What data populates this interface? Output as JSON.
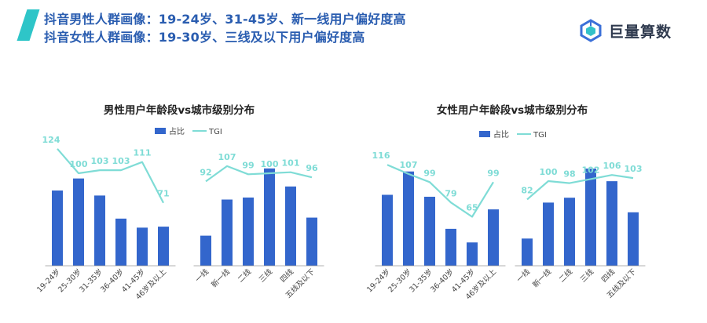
{
  "header": {
    "line1": "抖音男性人群画像：19-24岁、31-45岁、新一线用户偏好度高",
    "line2": "抖音女性人群画像：19-30岁、三线及以下用户偏好度高",
    "accent_color": "#2ec5c8",
    "headline_color": "#2a5db0"
  },
  "brand": {
    "name": "巨量算数",
    "icon": "cube-logo-icon"
  },
  "colors": {
    "bar": "#3366cc",
    "line": "#7fdcd6",
    "axis": "#999999"
  },
  "chart_data": [
    {
      "type": "bar",
      "title": "男性用户年龄段vs城市级别分布",
      "legend": {
        "bar": "占比",
        "line": "TGI",
        "position": "top"
      },
      "groups": [
        {
          "categories": [
            "19-24岁",
            "25-30岁",
            "31-35岁",
            "36-40岁",
            "41-45岁",
            "46岁及以上"
          ],
          "bar_values": [
            0.75,
            0.87,
            0.7,
            0.47,
            0.38,
            0.39
          ],
          "tgi_values": [
            124,
            100,
            103,
            103,
            111,
            71
          ]
        },
        {
          "categories": [
            "一线",
            "新一线",
            "二线",
            "三线",
            "四线",
            "五线及以下"
          ],
          "bar_values": [
            0.3,
            0.66,
            0.68,
            0.97,
            0.79,
            0.48
          ],
          "tgi_values": [
            92,
            107,
            99,
            100,
            101,
            96
          ]
        }
      ]
    },
    {
      "type": "bar",
      "title": "女性用户年龄段vs城市级别分布",
      "legend": {
        "bar": "占比",
        "line": "TGI",
        "position": "top"
      },
      "groups": [
        {
          "categories": [
            "19-24岁",
            "25-30岁",
            "31-35岁",
            "36-40岁",
            "41-45岁",
            "46岁及以上"
          ],
          "bar_values": [
            0.73,
            0.97,
            0.71,
            0.38,
            0.24,
            0.58
          ],
          "tgi_values": [
            116,
            107,
            99,
            79,
            65,
            99
          ]
        },
        {
          "categories": [
            "一线",
            "新一线",
            "二线",
            "三线",
            "四线",
            "五线及以下"
          ],
          "bar_values": [
            0.28,
            0.65,
            0.7,
            1.0,
            0.87,
            0.55
          ],
          "tgi_values": [
            82,
            100,
            98,
            102,
            106,
            103
          ]
        }
      ]
    }
  ]
}
